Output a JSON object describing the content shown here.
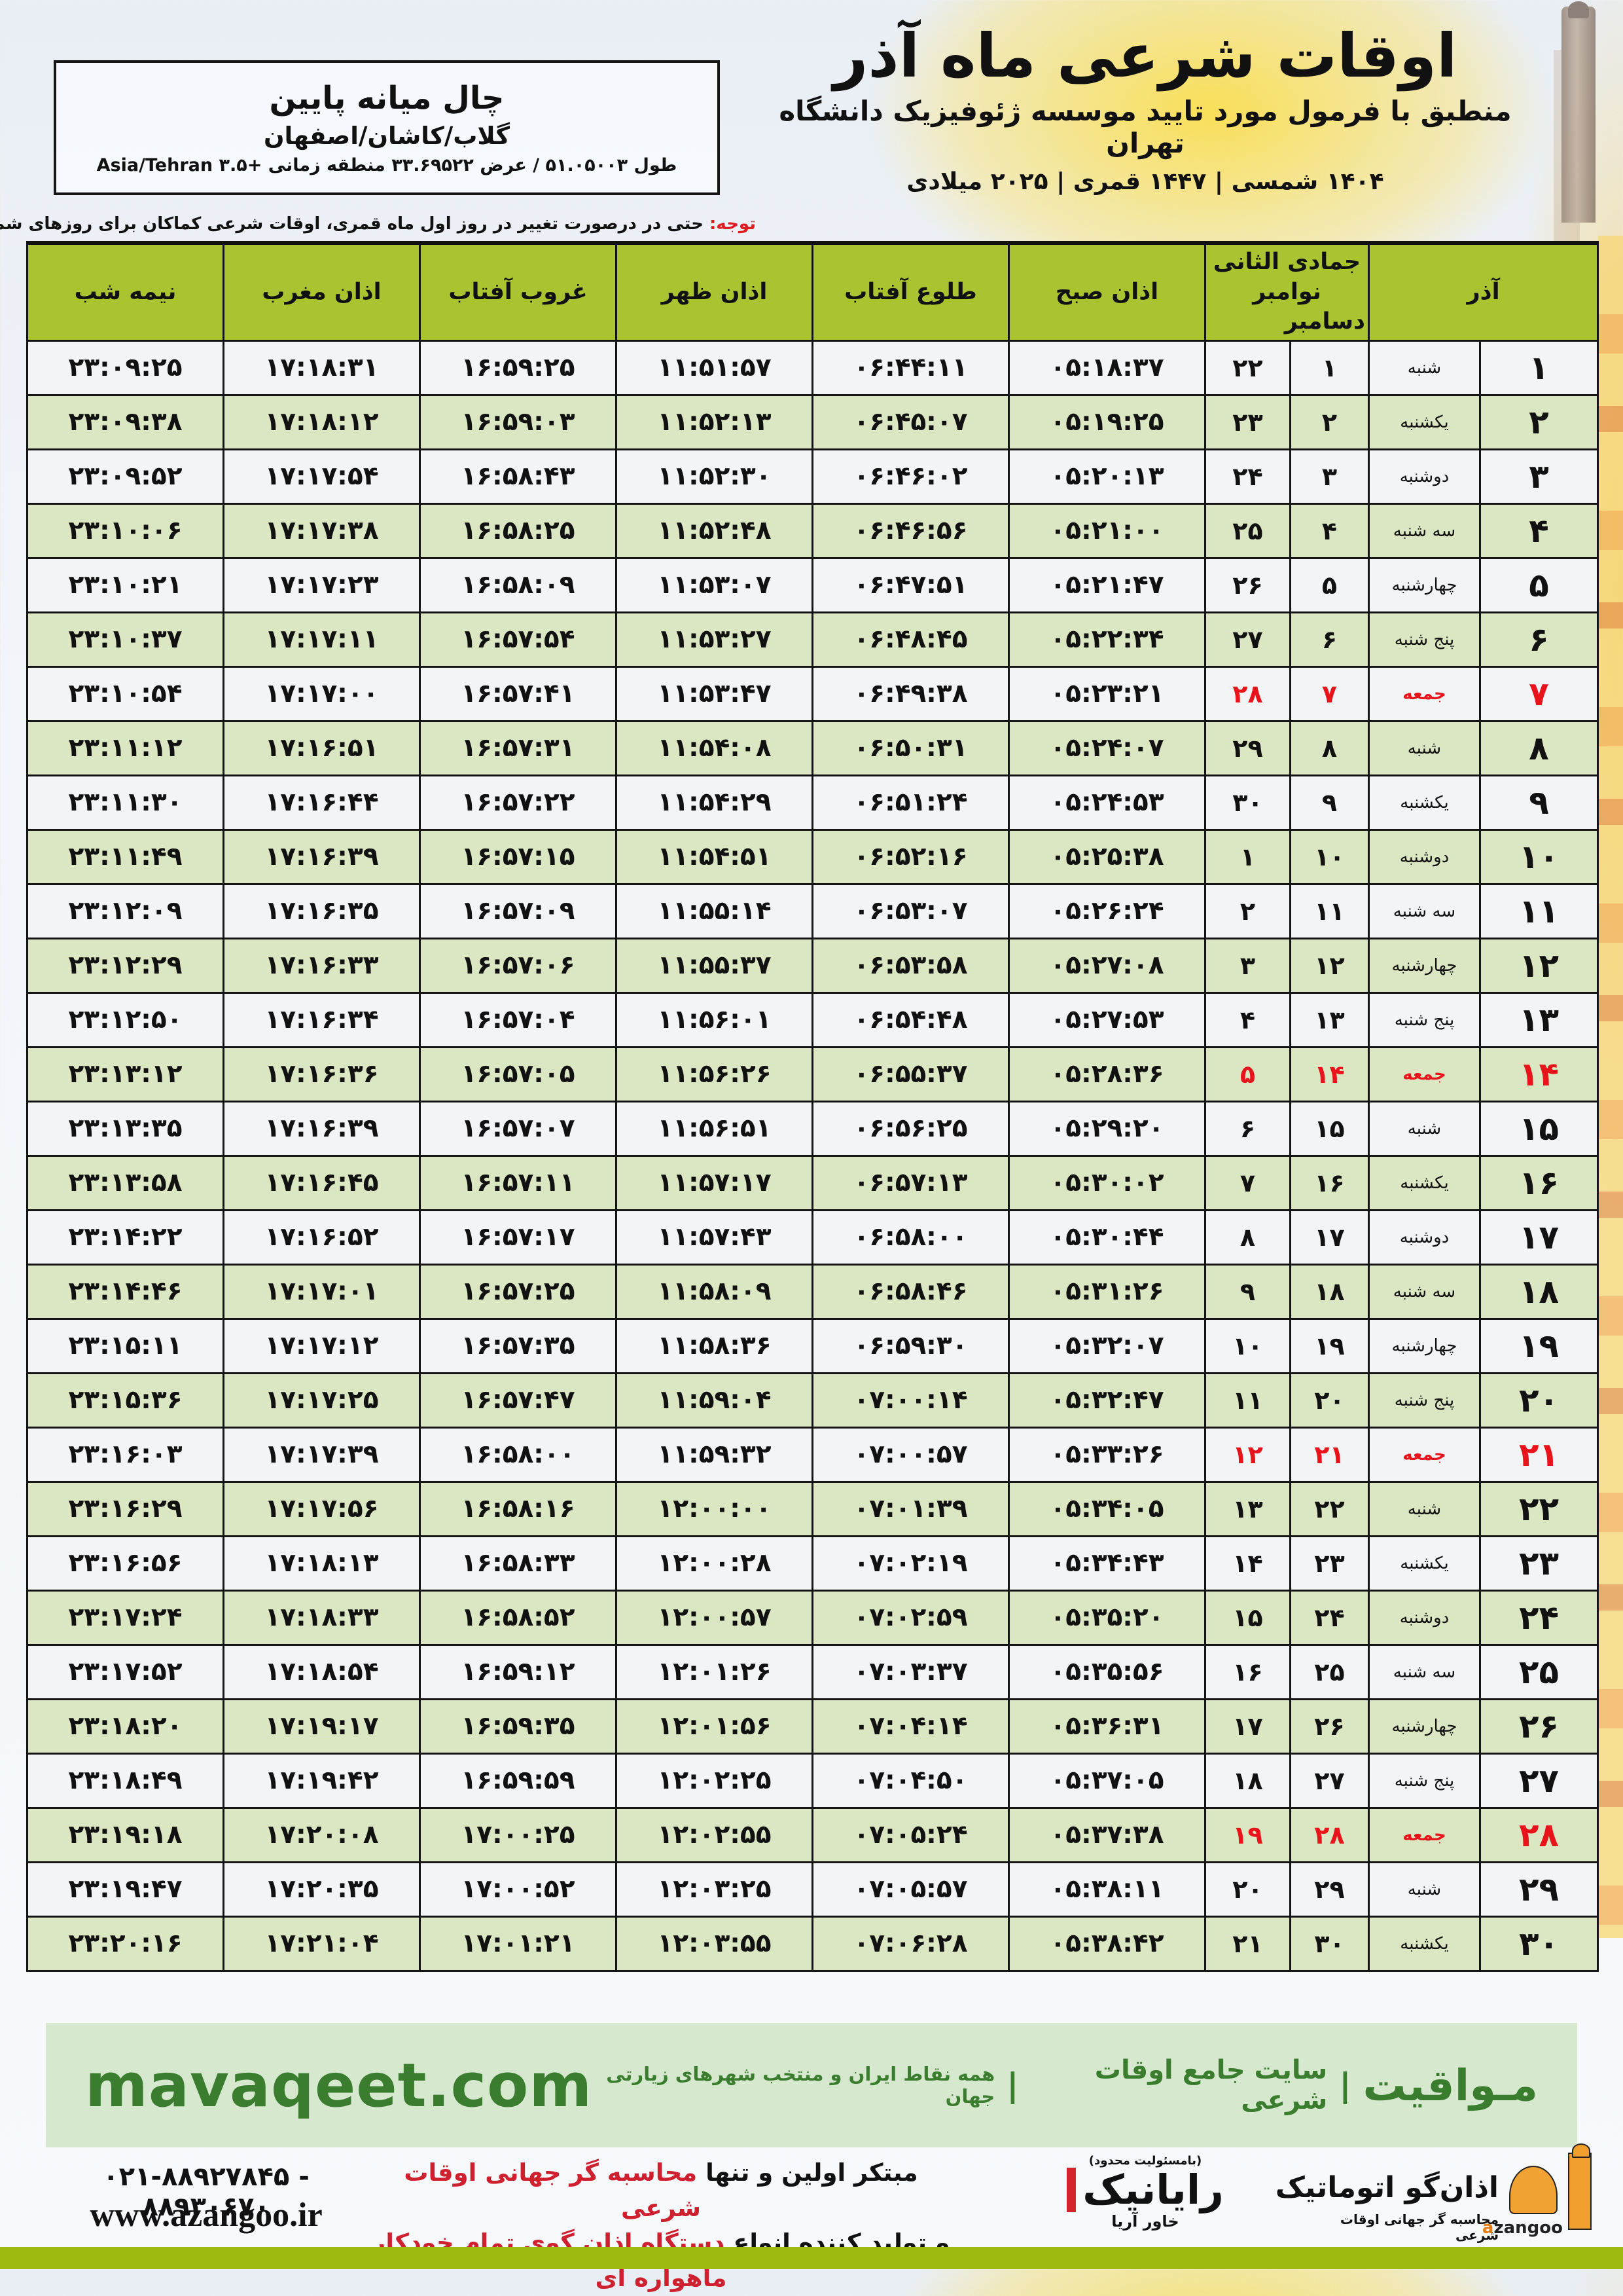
{
  "colors": {
    "header_green": "#a9c430",
    "row_green": "#dbe7c2",
    "row_white": "#f2f4f6",
    "friday_red": "#e8131b",
    "mavaqeet_bg": "#d6e8ce",
    "mavaqeet_green": "#3a7d2e",
    "lime_bar": "#9eb90f"
  },
  "header": {
    "title": "اوقات شرعی ماه آذر",
    "subtitle": "منطبق با فرمول مورد تایید موسسه ژئوفیزیک دانشگاه تهران",
    "years": "۱۴۰۴ شمسی | ۱۴۴۷ قمری | ۲۰۲۵ میلادی"
  },
  "location_box": {
    "title": "چال میانه پایین",
    "region": "گلاب/کاشان/اصفهان",
    "coords": "طول ۵۱.۰۵۰۰۳ / عرض ۳۳.۶۹۵۲۲ منطقه زمانی +۳.۵ Asia/Tehran"
  },
  "notice": {
    "label": "توجه:",
    "text": " حتی در درصورت تغییر در روز اول ماه قمری، اوقات شرعی کماکان برای روزهای شمسی و میلادی معتبر است."
  },
  "table": {
    "headers": {
      "month": "آذر",
      "small_top": "جمادی الثانی نوامبر",
      "small_bottom": "دسامبر",
      "fajr": "اذان صبح",
      "sunrise": "طلوع آفتاب",
      "noon": "اذان ظهر",
      "sunset": "غروب آفتاب",
      "maghrib": "اذان مغرب",
      "midnight": "نیمه شب"
    },
    "rows": [
      {
        "day": 1,
        "weekday": "شنبه",
        "hijri": 1,
        "greg": 22,
        "fajr": "05:18:37",
        "sunrise": "06:44:11",
        "noon": "11:51:57",
        "sunset": "16:59:25",
        "maghrib": "17:18:31",
        "midnight": "23:09:25",
        "friday": false
      },
      {
        "day": 2,
        "weekday": "یکشنبه",
        "hijri": 2,
        "greg": 23,
        "fajr": "05:19:25",
        "sunrise": "06:45:07",
        "noon": "11:52:13",
        "sunset": "16:59:03",
        "maghrib": "17:18:12",
        "midnight": "23:09:38",
        "friday": false
      },
      {
        "day": 3,
        "weekday": "دوشنبه",
        "hijri": 3,
        "greg": 24,
        "fajr": "05:20:13",
        "sunrise": "06:46:02",
        "noon": "11:52:30",
        "sunset": "16:58:43",
        "maghrib": "17:17:54",
        "midnight": "23:09:52",
        "friday": false
      },
      {
        "day": 4,
        "weekday": "سه شنبه",
        "hijri": 4,
        "greg": 25,
        "fajr": "05:21:00",
        "sunrise": "06:46:56",
        "noon": "11:52:48",
        "sunset": "16:58:25",
        "maghrib": "17:17:38",
        "midnight": "23:10:06",
        "friday": false
      },
      {
        "day": 5,
        "weekday": "چهارشنبه",
        "hijri": 5,
        "greg": 26,
        "fajr": "05:21:47",
        "sunrise": "06:47:51",
        "noon": "11:53:07",
        "sunset": "16:58:09",
        "maghrib": "17:17:23",
        "midnight": "23:10:21",
        "friday": false
      },
      {
        "day": 6,
        "weekday": "پنج شنبه",
        "hijri": 6,
        "greg": 27,
        "fajr": "05:22:34",
        "sunrise": "06:48:45",
        "noon": "11:53:27",
        "sunset": "16:57:54",
        "maghrib": "17:17:11",
        "midnight": "23:10:37",
        "friday": false
      },
      {
        "day": 7,
        "weekday": "جمعه",
        "hijri": 7,
        "greg": 28,
        "fajr": "05:23:21",
        "sunrise": "06:49:38",
        "noon": "11:53:47",
        "sunset": "16:57:41",
        "maghrib": "17:17:00",
        "midnight": "23:10:54",
        "friday": true
      },
      {
        "day": 8,
        "weekday": "شنبه",
        "hijri": 8,
        "greg": 29,
        "fajr": "05:24:07",
        "sunrise": "06:50:31",
        "noon": "11:54:08",
        "sunset": "16:57:31",
        "maghrib": "17:16:51",
        "midnight": "23:11:12",
        "friday": false
      },
      {
        "day": 9,
        "weekday": "یکشنبه",
        "hijri": 9,
        "greg": 30,
        "fajr": "05:24:53",
        "sunrise": "06:51:24",
        "noon": "11:54:29",
        "sunset": "16:57:22",
        "maghrib": "17:16:44",
        "midnight": "23:11:30",
        "friday": false
      },
      {
        "day": 10,
        "weekday": "دوشنبه",
        "hijri": 10,
        "greg": 1,
        "fajr": "05:25:38",
        "sunrise": "06:52:16",
        "noon": "11:54:51",
        "sunset": "16:57:15",
        "maghrib": "17:16:39",
        "midnight": "23:11:49",
        "friday": false
      },
      {
        "day": 11,
        "weekday": "سه شنبه",
        "hijri": 11,
        "greg": 2,
        "fajr": "05:26:24",
        "sunrise": "06:53:07",
        "noon": "11:55:14",
        "sunset": "16:57:09",
        "maghrib": "17:16:35",
        "midnight": "23:12:09",
        "friday": false
      },
      {
        "day": 12,
        "weekday": "چهارشنبه",
        "hijri": 12,
        "greg": 3,
        "fajr": "05:27:08",
        "sunrise": "06:53:58",
        "noon": "11:55:37",
        "sunset": "16:57:06",
        "maghrib": "17:16:33",
        "midnight": "23:12:29",
        "friday": false
      },
      {
        "day": 13,
        "weekday": "پنج شنبه",
        "hijri": 13,
        "greg": 4,
        "fajr": "05:27:53",
        "sunrise": "06:54:48",
        "noon": "11:56:01",
        "sunset": "16:57:04",
        "maghrib": "17:16:34",
        "midnight": "23:12:50",
        "friday": false
      },
      {
        "day": 14,
        "weekday": "جمعه",
        "hijri": 14,
        "greg": 5,
        "fajr": "05:28:36",
        "sunrise": "06:55:37",
        "noon": "11:56:26",
        "sunset": "16:57:05",
        "maghrib": "17:16:36",
        "midnight": "23:13:12",
        "friday": true
      },
      {
        "day": 15,
        "weekday": "شنبه",
        "hijri": 15,
        "greg": 6,
        "fajr": "05:29:20",
        "sunrise": "06:56:25",
        "noon": "11:56:51",
        "sunset": "16:57:07",
        "maghrib": "17:16:39",
        "midnight": "23:13:35",
        "friday": false
      },
      {
        "day": 16,
        "weekday": "یکشنبه",
        "hijri": 16,
        "greg": 7,
        "fajr": "05:30:02",
        "sunrise": "06:57:13",
        "noon": "11:57:17",
        "sunset": "16:57:11",
        "maghrib": "17:16:45",
        "midnight": "23:13:58",
        "friday": false
      },
      {
        "day": 17,
        "weekday": "دوشنبه",
        "hijri": 17,
        "greg": 8,
        "fajr": "05:30:44",
        "sunrise": "06:58:00",
        "noon": "11:57:43",
        "sunset": "16:57:17",
        "maghrib": "17:16:52",
        "midnight": "23:14:22",
        "friday": false
      },
      {
        "day": 18,
        "weekday": "سه شنبه",
        "hijri": 18,
        "greg": 9,
        "fajr": "05:31:26",
        "sunrise": "06:58:46",
        "noon": "11:58:09",
        "sunset": "16:57:25",
        "maghrib": "17:17:01",
        "midnight": "23:14:46",
        "friday": false
      },
      {
        "day": 19,
        "weekday": "چهارشنبه",
        "hijri": 19,
        "greg": 10,
        "fajr": "05:32:07",
        "sunrise": "06:59:30",
        "noon": "11:58:36",
        "sunset": "16:57:35",
        "maghrib": "17:17:12",
        "midnight": "23:15:11",
        "friday": false
      },
      {
        "day": 20,
        "weekday": "پنج شنبه",
        "hijri": 20,
        "greg": 11,
        "fajr": "05:32:47",
        "sunrise": "07:00:14",
        "noon": "11:59:04",
        "sunset": "16:57:47",
        "maghrib": "17:17:25",
        "midnight": "23:15:36",
        "friday": false
      },
      {
        "day": 21,
        "weekday": "جمعه",
        "hijri": 21,
        "greg": 12,
        "fajr": "05:33:26",
        "sunrise": "07:00:57",
        "noon": "11:59:32",
        "sunset": "16:58:00",
        "maghrib": "17:17:39",
        "midnight": "23:16:03",
        "friday": true
      },
      {
        "day": 22,
        "weekday": "شنبه",
        "hijri": 22,
        "greg": 13,
        "fajr": "05:34:05",
        "sunrise": "07:01:39",
        "noon": "12:00:00",
        "sunset": "16:58:16",
        "maghrib": "17:17:56",
        "midnight": "23:16:29",
        "friday": false
      },
      {
        "day": 23,
        "weekday": "یکشنبه",
        "hijri": 23,
        "greg": 14,
        "fajr": "05:34:43",
        "sunrise": "07:02:19",
        "noon": "12:00:28",
        "sunset": "16:58:33",
        "maghrib": "17:18:13",
        "midnight": "23:16:56",
        "friday": false
      },
      {
        "day": 24,
        "weekday": "دوشنبه",
        "hijri": 24,
        "greg": 15,
        "fajr": "05:35:20",
        "sunrise": "07:02:59",
        "noon": "12:00:57",
        "sunset": "16:58:52",
        "maghrib": "17:18:33",
        "midnight": "23:17:24",
        "friday": false
      },
      {
        "day": 25,
        "weekday": "سه شنبه",
        "hijri": 25,
        "greg": 16,
        "fajr": "05:35:56",
        "sunrise": "07:03:37",
        "noon": "12:01:26",
        "sunset": "16:59:12",
        "maghrib": "17:18:54",
        "midnight": "23:17:52",
        "friday": false
      },
      {
        "day": 26,
        "weekday": "چهارشنبه",
        "hijri": 26,
        "greg": 17,
        "fajr": "05:36:31",
        "sunrise": "07:04:14",
        "noon": "12:01:56",
        "sunset": "16:59:35",
        "maghrib": "17:19:17",
        "midnight": "23:18:20",
        "friday": false
      },
      {
        "day": 27,
        "weekday": "پنج شنبه",
        "hijri": 27,
        "greg": 18,
        "fajr": "05:37:05",
        "sunrise": "07:04:50",
        "noon": "12:02:25",
        "sunset": "16:59:59",
        "maghrib": "17:19:42",
        "midnight": "23:18:49",
        "friday": false
      },
      {
        "day": 28,
        "weekday": "جمعه",
        "hijri": 28,
        "greg": 19,
        "fajr": "05:37:38",
        "sunrise": "07:05:24",
        "noon": "12:02:55",
        "sunset": "17:00:25",
        "maghrib": "17:20:08",
        "midnight": "23:19:18",
        "friday": true
      },
      {
        "day": 29,
        "weekday": "شنبه",
        "hijri": 29,
        "greg": 20,
        "fajr": "05:38:11",
        "sunrise": "07:05:57",
        "noon": "12:03:25",
        "sunset": "17:00:52",
        "maghrib": "17:20:35",
        "midnight": "23:19:47",
        "friday": false
      },
      {
        "day": 30,
        "weekday": "یکشنبه",
        "hijri": 30,
        "greg": 21,
        "fajr": "05:38:42",
        "sunrise": "07:06:28",
        "noon": "12:03:55",
        "sunset": "17:01:21",
        "maghrib": "17:21:04",
        "midnight": "23:20:16",
        "friday": false
      }
    ]
  },
  "mavaqeet_bar": {
    "site": "mavaqeet.com",
    "brand": "مـواقیت",
    "sep": "|",
    "middle": "سایت جامع اوقات شرعی",
    "tagline": "همه نقاط ایران و منتخب شهرهای زیارتی جهان"
  },
  "bottom": {
    "phone": "021-88927845 - 88930670",
    "website": "www.azangoo.ir",
    "line1_black": "مبتکر اولین و تنها ",
    "line1_red": "محاسبه گر جهانی اوقات شرعی",
    "line2_black": "و تولید کننده انواع ",
    "line2_red": "دستگاه اذان گوی تمام خودکار ماهواره ای",
    "rayanik": {
      "top": "(بامسئولیت محدود)",
      "name": "رایانیک",
      "sub": "خاور آریا"
    },
    "azangoo": {
      "name": "اذان‌گو اتوماتیک",
      "tagline": "محاسبه گر جهانی اوقات شرعی",
      "latin_a": "a",
      "latin_rest": "zangoo"
    }
  }
}
